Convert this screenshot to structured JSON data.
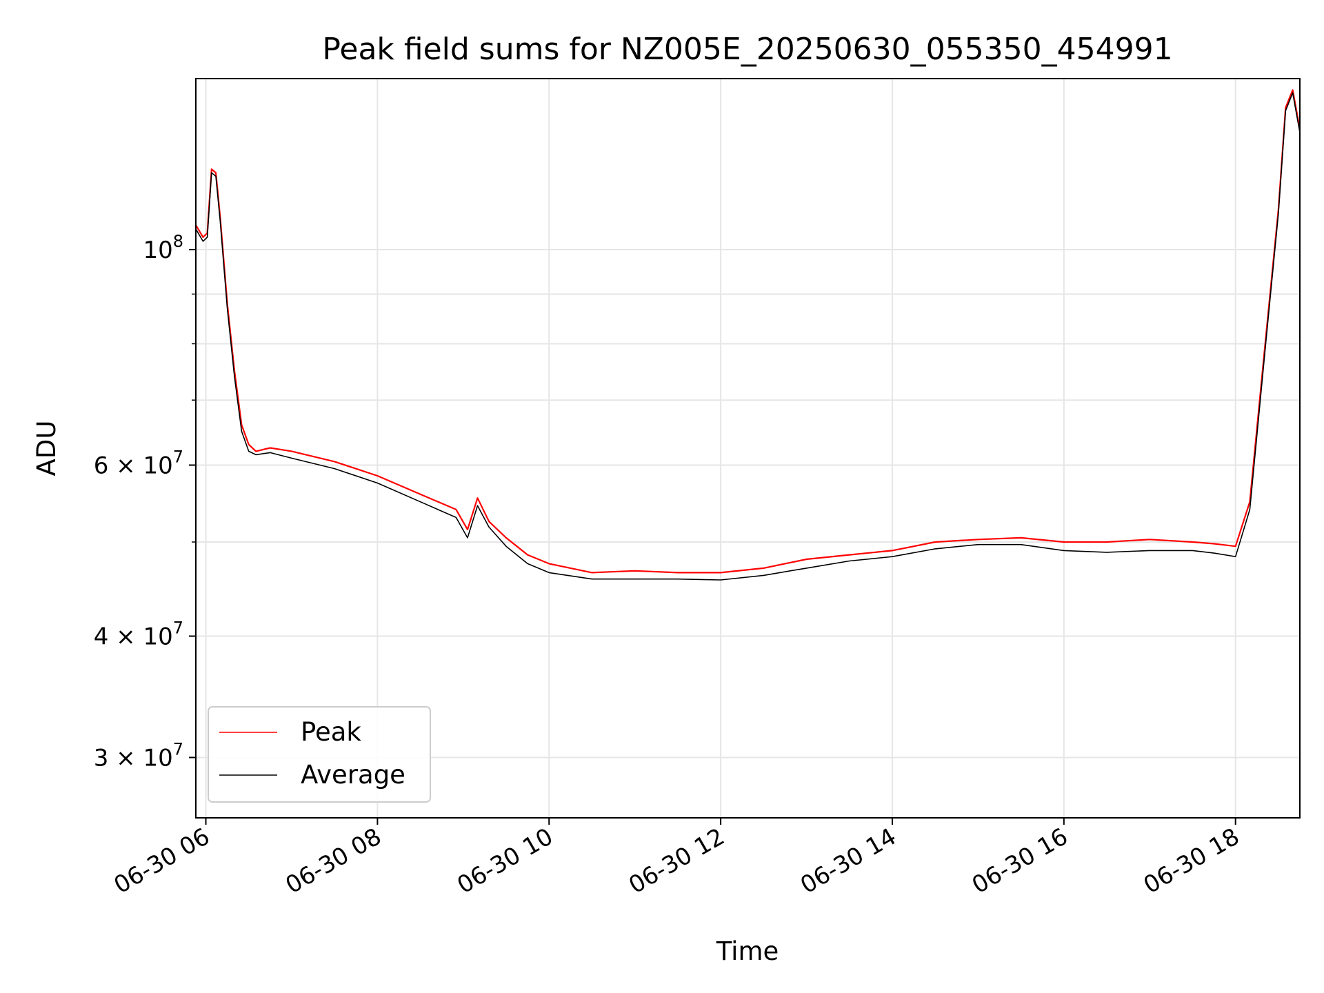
{
  "chart_data": {
    "type": "line",
    "title": "Peak field sums for NZ005E_20250630_055350_454991",
    "xlabel": "Time",
    "ylabel": "ADU",
    "yscale": "log",
    "ylim": [
      26000000,
      150000000
    ],
    "xlim": [
      "2025-06-30 05:53",
      "2025-06-30 18:45"
    ],
    "grid": true,
    "legend_position": "lower-left",
    "x_ticks": [
      "06-30 06",
      "06-30 08",
      "06-30 10",
      "06-30 12",
      "06-30 14",
      "06-30 16",
      "06-30 18"
    ],
    "x_tick_times": [
      "2025-06-30 06:00",
      "2025-06-30 08:00",
      "2025-06-30 10:00",
      "2025-06-30 12:00",
      "2025-06-30 14:00",
      "2025-06-30 16:00",
      "2025-06-30 18:00"
    ],
    "y_ticks_major": [
      {
        "value": 100000000,
        "base": "10",
        "exp": "8"
      },
      {
        "value": 60000000,
        "base": "6 × 10",
        "exp": "7"
      },
      {
        "value": 40000000,
        "base": "4 × 10",
        "exp": "7"
      },
      {
        "value": 30000000,
        "base": "3 × 10",
        "exp": "7"
      }
    ],
    "y_ticks_minor": [
      70000000,
      80000000,
      90000000,
      50000000
    ],
    "series": [
      {
        "name": "Peak",
        "color": "#ff0000",
        "x": [
          "2025-06-30 05:53",
          "2025-06-30 05:58",
          "2025-06-30 06:01",
          "2025-06-30 06:04",
          "2025-06-30 06:07",
          "2025-06-30 06:10",
          "2025-06-30 06:15",
          "2025-06-30 06:20",
          "2025-06-30 06:25",
          "2025-06-30 06:30",
          "2025-06-30 06:35",
          "2025-06-30 06:45",
          "2025-06-30 07:00",
          "2025-06-30 07:30",
          "2025-06-30 08:00",
          "2025-06-30 08:30",
          "2025-06-30 08:55",
          "2025-06-30 09:03",
          "2025-06-30 09:10",
          "2025-06-30 09:18",
          "2025-06-30 09:30",
          "2025-06-30 09:45",
          "2025-06-30 10:00",
          "2025-06-30 10:30",
          "2025-06-30 11:00",
          "2025-06-30 11:30",
          "2025-06-30 12:00",
          "2025-06-30 12:30",
          "2025-06-30 13:00",
          "2025-06-30 13:30",
          "2025-06-30 14:00",
          "2025-06-30 14:30",
          "2025-06-30 15:00",
          "2025-06-30 15:30",
          "2025-06-30 16:00",
          "2025-06-30 16:30",
          "2025-06-30 17:00",
          "2025-06-30 17:30",
          "2025-06-30 17:45",
          "2025-06-30 18:00",
          "2025-06-30 18:10",
          "2025-06-30 18:20",
          "2025-06-30 18:30",
          "2025-06-30 18:35",
          "2025-06-30 18:40",
          "2025-06-30 18:45"
        ],
        "values": [
          106000000,
          103000000,
          104000000,
          121000000,
          120000000,
          108000000,
          88000000,
          75000000,
          66000000,
          63000000,
          62000000,
          62500000,
          62000000,
          60500000,
          58500000,
          56000000,
          54000000,
          51500000,
          55500000,
          52500000,
          50500000,
          48500000,
          47500000,
          46500000,
          46700000,
          46500000,
          46500000,
          47000000,
          48000000,
          48500000,
          49000000,
          50000000,
          50300000,
          50500000,
          50000000,
          50000000,
          50300000,
          50000000,
          49800000,
          49500000,
          55000000,
          78000000,
          110000000,
          140000000,
          146000000,
          133000000
        ]
      },
      {
        "name": "Average",
        "color": "#000000",
        "x": [
          "2025-06-30 05:53",
          "2025-06-30 05:58",
          "2025-06-30 06:01",
          "2025-06-30 06:04",
          "2025-06-30 06:07",
          "2025-06-30 06:10",
          "2025-06-30 06:15",
          "2025-06-30 06:20",
          "2025-06-30 06:25",
          "2025-06-30 06:30",
          "2025-06-30 06:35",
          "2025-06-30 06:45",
          "2025-06-30 07:00",
          "2025-06-30 07:30",
          "2025-06-30 08:00",
          "2025-06-30 08:30",
          "2025-06-30 08:55",
          "2025-06-30 09:03",
          "2025-06-30 09:10",
          "2025-06-30 09:18",
          "2025-06-30 09:30",
          "2025-06-30 09:45",
          "2025-06-30 10:00",
          "2025-06-30 10:30",
          "2025-06-30 11:00",
          "2025-06-30 11:30",
          "2025-06-30 12:00",
          "2025-06-30 12:30",
          "2025-06-30 13:00",
          "2025-06-30 13:30",
          "2025-06-30 14:00",
          "2025-06-30 14:30",
          "2025-06-30 15:00",
          "2025-06-30 15:30",
          "2025-06-30 16:00",
          "2025-06-30 16:30",
          "2025-06-30 17:00",
          "2025-06-30 17:30",
          "2025-06-30 17:45",
          "2025-06-30 18:00",
          "2025-06-30 18:10",
          "2025-06-30 18:20",
          "2025-06-30 18:30",
          "2025-06-30 18:35",
          "2025-06-30 18:40",
          "2025-06-30 18:45"
        ],
        "values": [
          105000000,
          102000000,
          103000000,
          120000000,
          119000000,
          107000000,
          87000000,
          74000000,
          65000000,
          62000000,
          61500000,
          61800000,
          61000000,
          59500000,
          57500000,
          55000000,
          53000000,
          50500000,
          54500000,
          51800000,
          49500000,
          47500000,
          46500000,
          45800000,
          45800000,
          45800000,
          45700000,
          46200000,
          47000000,
          47800000,
          48300000,
          49200000,
          49700000,
          49700000,
          49000000,
          48800000,
          49000000,
          49000000,
          48700000,
          48300000,
          54000000,
          77000000,
          109000000,
          139000000,
          145000000,
          132000000
        ]
      }
    ]
  }
}
